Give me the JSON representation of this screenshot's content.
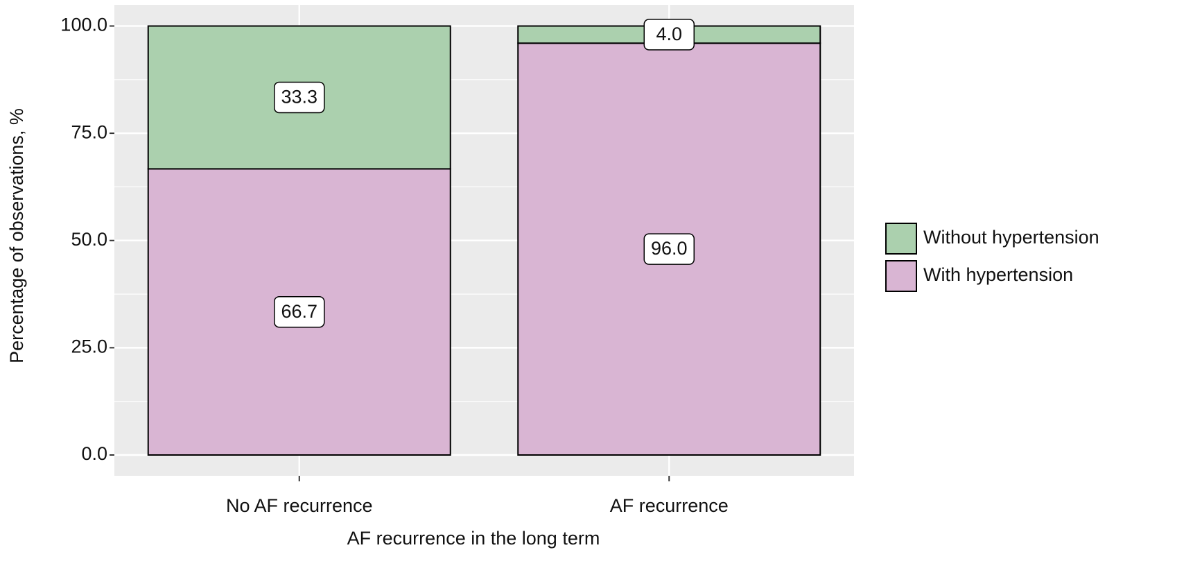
{
  "chart_data": {
    "type": "stacked_bar",
    "x_label": "AF recurrence in the long term",
    "y_label": "Percentage of observations, %",
    "categories": [
      "No AF recurrence",
      "AF recurrence"
    ],
    "series": [
      {
        "name": "Without hypertension",
        "color": "#abd0ae",
        "values": [
          33.3,
          4.0
        ],
        "value_labels": [
          "33.3",
          "4.0"
        ]
      },
      {
        "name": "With hypertension",
        "color": "#d9b5d3",
        "values": [
          66.7,
          96.0
        ],
        "value_labels": [
          "66.7",
          "96.0"
        ]
      }
    ],
    "ylim": [
      0,
      100
    ],
    "yticks": [
      {
        "value": 0,
        "label": "0.0"
      },
      {
        "value": 25,
        "label": "25.0"
      },
      {
        "value": 50,
        "label": "50.0"
      },
      {
        "value": 75,
        "label": "75.0"
      },
      {
        "value": 100,
        "label": "100.0"
      }
    ],
    "grid": true,
    "legend": "right"
  }
}
